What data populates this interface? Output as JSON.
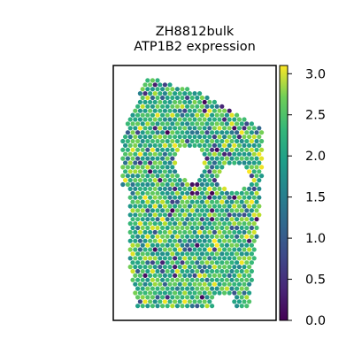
{
  "chart_data": {
    "type": "scatter",
    "title": "ZH8812bulk",
    "subtitle": "ATP1B2 expression",
    "xlabel": "",
    "ylabel": "",
    "colorbar": {
      "colormap": "viridis",
      "range": [
        0.0,
        3.1
      ],
      "ticks": [
        "0.0",
        "0.5",
        "1.0",
        "1.5",
        "2.0",
        "2.5",
        "3.0"
      ],
      "tick_values": [
        0.0,
        0.5,
        1.0,
        1.5,
        2.0,
        2.5,
        3.0
      ]
    },
    "grid": false,
    "description_of_values": "spatial spots colored by ATP1B2 expression, mostly 1.5-2.5 with scattered low (dark) and high (yellow) spots"
  }
}
